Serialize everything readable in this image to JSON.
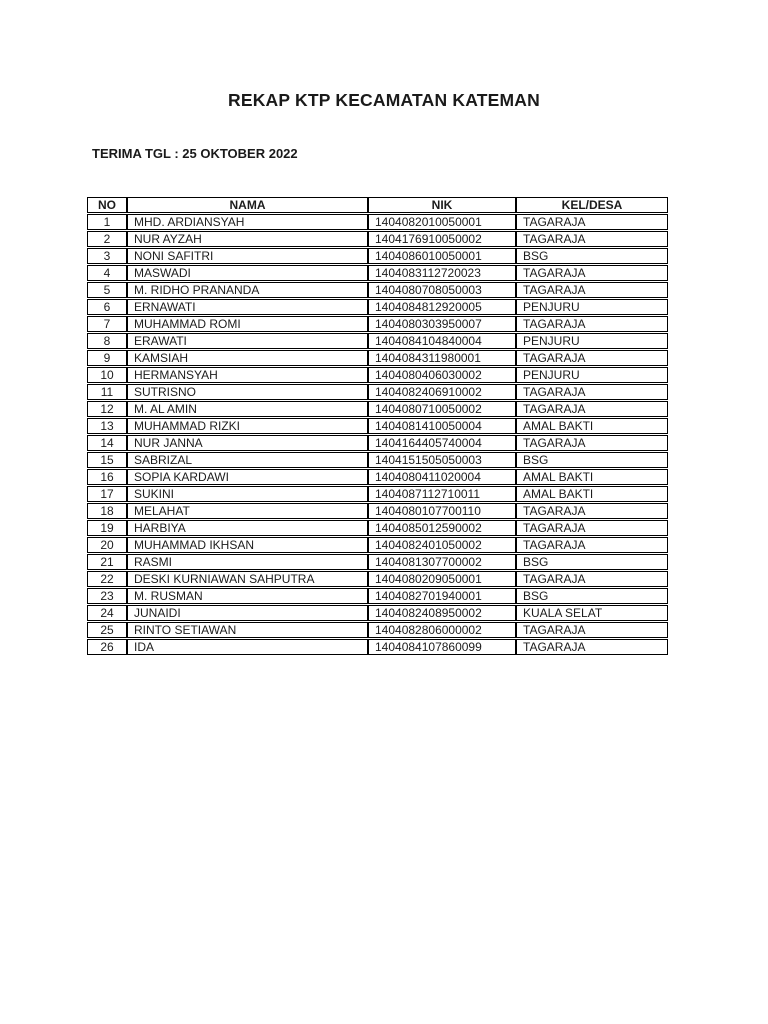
{
  "document": {
    "title": "REKAP KTP KECAMATAN KATEMAN",
    "receive_date_label": "TERIMA TGL : 25 OKTOBER 2022"
  },
  "table": {
    "headers": [
      "NO",
      "NAMA",
      "NIK",
      "KEL/DESA"
    ],
    "rows": [
      {
        "no": "1",
        "nama": "MHD. ARDIANSYAH",
        "nik": "1404082010050001",
        "kel": "TAGARAJA"
      },
      {
        "no": "2",
        "nama": "NUR AYZAH",
        "nik": "1404176910050002",
        "kel": "TAGARAJA"
      },
      {
        "no": "3",
        "nama": "NONI SAFITRI",
        "nik": "1404086010050001",
        "kel": "BSG"
      },
      {
        "no": "4",
        "nama": "MASWADI",
        "nik": "1404083112720023",
        "kel": "TAGARAJA"
      },
      {
        "no": "5",
        "nama": "M. RIDHO PRANANDA",
        "nik": "1404080708050003",
        "kel": "TAGARAJA"
      },
      {
        "no": "6",
        "nama": "ERNAWATI",
        "nik": "1404084812920005",
        "kel": "PENJURU"
      },
      {
        "no": "7",
        "nama": "MUHAMMAD ROMI",
        "nik": "1404080303950007",
        "kel": "TAGARAJA"
      },
      {
        "no": "8",
        "nama": "ERAWATI",
        "nik": "1404084104840004",
        "kel": "PENJURU"
      },
      {
        "no": "9",
        "nama": "KAMSIAH",
        "nik": "1404084311980001",
        "kel": "TAGARAJA"
      },
      {
        "no": "10",
        "nama": "HERMANSYAH",
        "nik": "1404080406030002",
        "kel": "PENJURU"
      },
      {
        "no": "11",
        "nama": "SUTRISNO",
        "nik": "1404082406910002",
        "kel": "TAGARAJA"
      },
      {
        "no": "12",
        "nama": "M. AL AMIN",
        "nik": "1404080710050002",
        "kel": "TAGARAJA"
      },
      {
        "no": "13",
        "nama": "MUHAMMAD RIZKI",
        "nik": "1404081410050004",
        "kel": "AMAL BAKTI"
      },
      {
        "no": "14",
        "nama": "NUR JANNA",
        "nik": "1404164405740004",
        "kel": "TAGARAJA"
      },
      {
        "no": "15",
        "nama": "SABRIZAL",
        "nik": "1404151505050003",
        "kel": "BSG"
      },
      {
        "no": "16",
        "nama": "SOPIA KARDAWI",
        "nik": "1404080411020004",
        "kel": "AMAL BAKTI"
      },
      {
        "no": "17",
        "nama": "SUKINI",
        "nik": "1404087112710011",
        "kel": "AMAL BAKTI"
      },
      {
        "no": "18",
        "nama": "MELAHAT",
        "nik": "1404080107700110",
        "kel": "TAGARAJA"
      },
      {
        "no": "19",
        "nama": "HARBIYA",
        "nik": "1404085012590002",
        "kel": "TAGARAJA"
      },
      {
        "no": "20",
        "nama": "MUHAMMAD IKHSAN",
        "nik": "1404082401050002",
        "kel": "TAGARAJA"
      },
      {
        "no": "21",
        "nama": "RASMI",
        "nik": "1404081307700002",
        "kel": "BSG"
      },
      {
        "no": "22",
        "nama": "DESKI KURNIAWAN SAHPUTRA",
        "nik": "1404080209050001",
        "kel": "TAGARAJA"
      },
      {
        "no": "23",
        "nama": "M. RUSMAN",
        "nik": "1404082701940001",
        "kel": "BSG"
      },
      {
        "no": "24",
        "nama": "JUNAIDI",
        "nik": "1404082408950002",
        "kel": "KUALA SELAT"
      },
      {
        "no": "25",
        "nama": "RINTO SETIAWAN",
        "nik": "1404082806000002",
        "kel": "TAGARAJA"
      },
      {
        "no": "26",
        "nama": "IDA",
        "nik": "1404084107860099",
        "kel": "TAGARAJA"
      }
    ]
  }
}
